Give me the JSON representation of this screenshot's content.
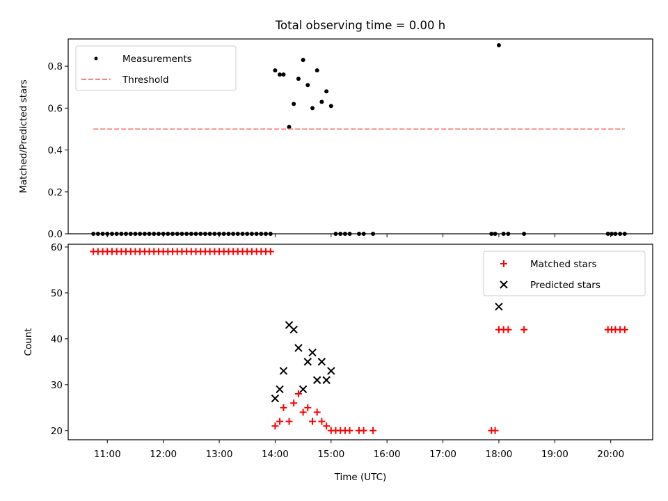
{
  "figure": {
    "title": "Total observing time = 0.00 h",
    "xlabel": "Time (UTC)"
  },
  "chart_data": [
    {
      "type": "scatter",
      "panel": "top",
      "ylabel": "Matched/Predicted stars",
      "xlim": [
        10.3,
        20.75
      ],
      "ylim": [
        0,
        0.93
      ],
      "yticks": [
        0.0,
        0.2,
        0.4,
        0.6,
        0.8
      ],
      "xticks": [
        11,
        12,
        13,
        14,
        15,
        16,
        17,
        18,
        19,
        20
      ],
      "show_xtick_labels": false,
      "legend": "top-left",
      "series": [
        {
          "name": "Measurements",
          "kind": "points",
          "color": "#000000",
          "x": [
            10.75,
            10.833,
            10.917,
            11.0,
            11.083,
            11.167,
            11.25,
            11.333,
            11.417,
            11.5,
            11.583,
            11.667,
            11.75,
            11.833,
            11.917,
            12.0,
            12.083,
            12.167,
            12.25,
            12.333,
            12.417,
            12.5,
            12.583,
            12.667,
            12.75,
            12.833,
            12.917,
            13.0,
            13.083,
            13.167,
            13.25,
            13.333,
            13.417,
            13.5,
            13.583,
            13.667,
            13.75,
            13.833,
            13.917,
            14.0,
            14.083,
            14.15,
            14.25,
            14.333,
            14.417,
            14.5,
            14.583,
            14.667,
            14.75,
            14.833,
            14.917,
            15.0,
            15.083,
            15.167,
            15.25,
            15.333,
            15.5,
            15.583,
            15.75,
            17.867,
            17.933,
            18.0,
            18.083,
            18.167,
            18.45,
            19.95,
            20.017,
            20.083,
            20.167,
            20.25
          ],
          "y": [
            0,
            0,
            0,
            0,
            0,
            0,
            0,
            0,
            0,
            0,
            0,
            0,
            0,
            0,
            0,
            0,
            0,
            0,
            0,
            0,
            0,
            0,
            0,
            0,
            0,
            0,
            0,
            0,
            0,
            0,
            0,
            0,
            0,
            0,
            0,
            0,
            0,
            0,
            0,
            0.78,
            0.76,
            0.76,
            0.51,
            0.62,
            0.74,
            0.83,
            0.71,
            0.6,
            0.78,
            0.63,
            0.68,
            0.61,
            0,
            0,
            0,
            0,
            0,
            0,
            0,
            0,
            0,
            0.9,
            0,
            0,
            0,
            0,
            0,
            0,
            0,
            0
          ]
        },
        {
          "name": "Threshold",
          "kind": "dashed-line",
          "color": "#ff7f7f",
          "x": [
            10.75,
            20.25
          ],
          "y": [
            0.5,
            0.5
          ]
        }
      ]
    },
    {
      "type": "scatter",
      "panel": "bottom",
      "ylabel": "Count",
      "xlabel": "Time (UTC)",
      "xlim": [
        10.3,
        20.75
      ],
      "ylim": [
        18.0,
        60.6
      ],
      "yticks": [
        20,
        30,
        40,
        50,
        60
      ],
      "xticks": [
        11,
        12,
        13,
        14,
        15,
        16,
        17,
        18,
        19,
        20
      ],
      "xtick_labels": [
        "11:00",
        "12:00",
        "13:00",
        "14:00",
        "15:00",
        "16:00",
        "17:00",
        "18:00",
        "19:00",
        "20:00"
      ],
      "show_xtick_labels": true,
      "legend": "top-right",
      "series": [
        {
          "name": "Matched stars",
          "kind": "plus",
          "color": "#ff0000",
          "x": [
            10.75,
            10.833,
            10.917,
            11.0,
            11.083,
            11.167,
            11.25,
            11.333,
            11.417,
            11.5,
            11.583,
            11.667,
            11.75,
            11.833,
            11.917,
            12.0,
            12.083,
            12.167,
            12.25,
            12.333,
            12.417,
            12.5,
            12.583,
            12.667,
            12.75,
            12.833,
            12.917,
            13.0,
            13.083,
            13.167,
            13.25,
            13.333,
            13.417,
            13.5,
            13.583,
            13.667,
            13.75,
            13.833,
            13.917,
            14.0,
            14.083,
            14.15,
            14.25,
            14.333,
            14.417,
            14.5,
            14.583,
            14.667,
            14.75,
            14.833,
            14.917,
            15.0,
            15.083,
            15.167,
            15.25,
            15.333,
            15.5,
            15.583,
            15.75,
            17.867,
            17.933,
            18.0,
            18.083,
            18.167,
            18.45,
            19.95,
            20.017,
            20.083,
            20.167,
            20.25
          ],
          "y": [
            59,
            59,
            59,
            59,
            59,
            59,
            59,
            59,
            59,
            59,
            59,
            59,
            59,
            59,
            59,
            59,
            59,
            59,
            59,
            59,
            59,
            59,
            59,
            59,
            59,
            59,
            59,
            59,
            59,
            59,
            59,
            59,
            59,
            59,
            59,
            59,
            59,
            59,
            59,
            21,
            22,
            25,
            22,
            26,
            28,
            24,
            25,
            22,
            24,
            22,
            21,
            20,
            20,
            20,
            20,
            20,
            20,
            20,
            20,
            20,
            20,
            42,
            42,
            42,
            42,
            42,
            42,
            42,
            42,
            42
          ]
        },
        {
          "name": "Predicted stars",
          "kind": "x",
          "color": "#000000",
          "x": [
            14.0,
            14.083,
            14.15,
            14.25,
            14.333,
            14.417,
            14.5,
            14.583,
            14.667,
            14.75,
            14.833,
            14.917,
            15.0,
            18.0
          ],
          "y": [
            27,
            29,
            33,
            43,
            42,
            38,
            29,
            35,
            37,
            31,
            35,
            31,
            33,
            47
          ]
        }
      ]
    }
  ]
}
